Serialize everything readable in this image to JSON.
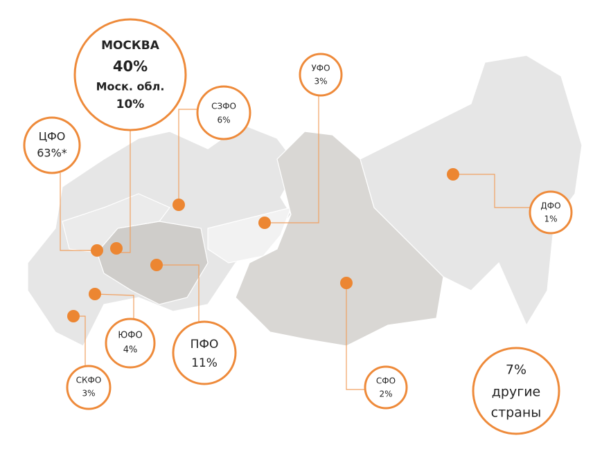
{
  "callouts": [
    {
      "lines": [
        "МОСКВА",
        "40%",
        "Моск. обл.",
        "10%"
      ]
    },
    {
      "lines": [
        "ЦФО",
        "63%*"
      ]
    },
    {
      "lines": [
        "СЗФО",
        "6%"
      ]
    },
    {
      "lines": [
        "УФО",
        "3%"
      ]
    },
    {
      "lines": [
        "ДФО",
        "1%"
      ]
    },
    {
      "lines": [
        "ЮФО",
        "4%"
      ]
    },
    {
      "lines": [
        "ПФО",
        "11%"
      ]
    },
    {
      "lines": [
        "СКФО",
        "3%"
      ]
    },
    {
      "lines": [
        "СФО",
        "2%"
      ]
    },
    {
      "lines": [
        "7%",
        "другие",
        "страны"
      ]
    }
  ]
}
